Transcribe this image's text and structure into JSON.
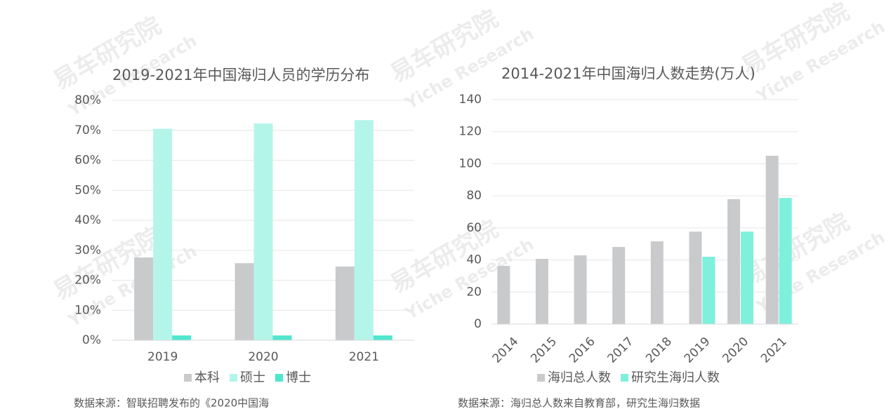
{
  "watermark": {
    "cn": "易车研究院",
    "en": "Yiche Research"
  },
  "chart_data": [
    {
      "type": "bar",
      "title": "2019-2021年中国海归人员的学历分布",
      "categories": [
        "2019",
        "2020",
        "2021"
      ],
      "series": [
        {
          "name": "本科",
          "color": "#c9cacc",
          "values": [
            27.6,
            25.7,
            24.6
          ]
        },
        {
          "name": "硕士",
          "color": "#b4f5ea",
          "values": [
            70.5,
            72.3,
            73.4
          ]
        },
        {
          "name": "博士",
          "color": "#4ee6cc",
          "values": [
            1.6,
            1.6,
            1.6
          ]
        }
      ],
      "ylim": [
        0,
        80
      ],
      "yticks": [
        {
          "value": 0,
          "label": "0%"
        },
        {
          "value": 10,
          "label": "10%"
        },
        {
          "value": 20,
          "label": "20%"
        },
        {
          "value": 30,
          "label": "30%"
        },
        {
          "value": 40,
          "label": "40%"
        },
        {
          "value": 50,
          "label": "50%"
        },
        {
          "value": 60,
          "label": "60%"
        },
        {
          "value": 70,
          "label": "70%"
        },
        {
          "value": 80,
          "label": "80%"
        }
      ],
      "grid": true,
      "legend": "bottom",
      "source": "数据来源：智联招聘发布的《2020中国海"
    },
    {
      "type": "bar",
      "title": "2014-2021年中国海归人数走势(万人)",
      "categories": [
        "2014",
        "2015",
        "2016",
        "2017",
        "2018",
        "2019",
        "2020",
        "2021"
      ],
      "series": [
        {
          "name": "海归总人数",
          "color": "#c9cacc",
          "values": [
            36.3,
            40.7,
            42.9,
            48.1,
            51.6,
            57.7,
            77.9,
            105
          ]
        },
        {
          "name": "研究生海归人数",
          "color": "#7ef0dc",
          "values": [
            null,
            null,
            null,
            null,
            null,
            42,
            57.7,
            78.7
          ]
        }
      ],
      "ylim": [
        0,
        140
      ],
      "yticks": [
        0,
        20,
        40,
        60,
        80,
        100,
        120,
        140
      ],
      "grid": true,
      "legend": "bottom",
      "rotate_x_labels": true,
      "source": "数据来源：海归总人数来自教育部，研究生海归数据"
    }
  ]
}
